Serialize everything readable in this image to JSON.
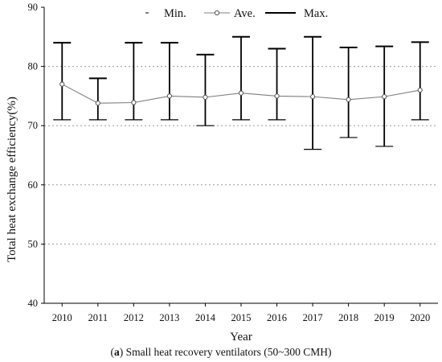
{
  "chart_data": {
    "type": "line",
    "x": [
      "2010",
      "2011",
      "2012",
      "2013",
      "2014",
      "2015",
      "2016",
      "2017",
      "2018",
      "2019",
      "2020"
    ],
    "series": [
      {
        "name": "Min.",
        "values": [
          71,
          71,
          71,
          71,
          70,
          71,
          71,
          66,
          68,
          66.5,
          71
        ]
      },
      {
        "name": "Ave.",
        "values": [
          77,
          73.8,
          73.9,
          75,
          74.8,
          75.5,
          75,
          74.9,
          74.4,
          74.9,
          76
        ]
      },
      {
        "name": "Max.",
        "values": [
          84,
          78,
          84,
          84,
          82,
          85,
          83,
          85,
          83.2,
          83.4,
          84.1
        ]
      }
    ],
    "xlabel": "Year",
    "ylabel": "Total heat exchange efficiency(%)",
    "ylim": [
      40,
      90
    ],
    "yticks": [
      40,
      50,
      60,
      70,
      80,
      90
    ],
    "grid": "horizontal dotted at 50, 60, 70, 80",
    "legend_position": "top",
    "colors": {
      "range": "#000000",
      "average": "#7f7f7f",
      "grid": "#9a9a9a"
    }
  },
  "caption": {
    "prefix": "(",
    "label": "a",
    "text": ") Small heat recovery ventilators (50~300 CMH)"
  }
}
